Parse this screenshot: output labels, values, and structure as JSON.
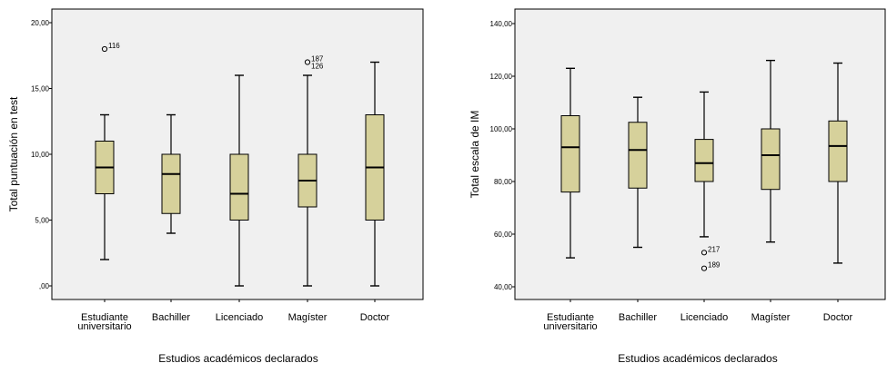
{
  "chart_data": [
    {
      "type": "boxplot",
      "ylabel": "Total puntuación en test",
      "xlabel": "Estudios académicos declarados",
      "ylim": [
        0,
        20
      ],
      "yticks": [
        "20,00",
        "15,00",
        "10,00",
        "5,00",
        ",00"
      ],
      "ytick_values": [
        20,
        15,
        10,
        5,
        0
      ],
      "categories": [
        [
          "Estudiante",
          "universitario"
        ],
        [
          "Bachiller"
        ],
        [
          "Licenciado"
        ],
        [
          "Magíster"
        ],
        [
          "Doctor"
        ]
      ],
      "boxes": [
        {
          "min": 2,
          "q1": 7,
          "median": 9,
          "q3": 11,
          "max": 13,
          "outliers": [
            {
              "value": 18,
              "labels": [
                "116"
              ]
            }
          ]
        },
        {
          "min": 4,
          "q1": 5.5,
          "median": 8.5,
          "q3": 10,
          "max": 13,
          "outliers": []
        },
        {
          "min": 0,
          "q1": 5,
          "median": 7,
          "q3": 10,
          "max": 16,
          "outliers": []
        },
        {
          "min": 0,
          "q1": 6,
          "median": 8,
          "q3": 10,
          "max": 16,
          "outliers": [
            {
              "value": 17,
              "labels": [
                "187",
                "126"
              ]
            }
          ]
        },
        {
          "min": 0,
          "q1": 5,
          "median": 9,
          "q3": 13,
          "max": 17,
          "outliers": []
        }
      ],
      "box_color": "#d6d19b",
      "panel_color": "#f0f0f0"
    },
    {
      "type": "boxplot",
      "ylabel": "Total escala de IM",
      "xlabel": "Estudios académicos declarados",
      "ylim": [
        40,
        140
      ],
      "yticks": [
        "140,00",
        "120,00",
        "100,00",
        "80,00",
        "60,00",
        "40,00"
      ],
      "ytick_values": [
        140,
        120,
        100,
        80,
        60,
        40
      ],
      "categories": [
        [
          "Estudiante",
          "universitario"
        ],
        [
          "Bachiller"
        ],
        [
          "Licenciado"
        ],
        [
          "Magíster"
        ],
        [
          "Doctor"
        ]
      ],
      "boxes": [
        {
          "min": 51,
          "q1": 76,
          "median": 93,
          "q3": 105,
          "max": 123,
          "outliers": []
        },
        {
          "min": 55,
          "q1": 77.5,
          "median": 92,
          "q3": 102.5,
          "max": 112,
          "outliers": []
        },
        {
          "min": 59,
          "q1": 80,
          "median": 87,
          "q3": 96,
          "max": 114,
          "outliers": [
            {
              "value": 53,
              "labels": [
                "217"
              ]
            },
            {
              "value": 47,
              "labels": [
                "189"
              ]
            }
          ]
        },
        {
          "min": 57,
          "q1": 77,
          "median": 90,
          "q3": 100,
          "max": 126,
          "outliers": []
        },
        {
          "min": 49,
          "q1": 80,
          "median": 93.5,
          "q3": 103,
          "max": 125,
          "outliers": []
        }
      ],
      "box_color": "#d6d19b",
      "panel_color": "#f0f0f0"
    }
  ]
}
